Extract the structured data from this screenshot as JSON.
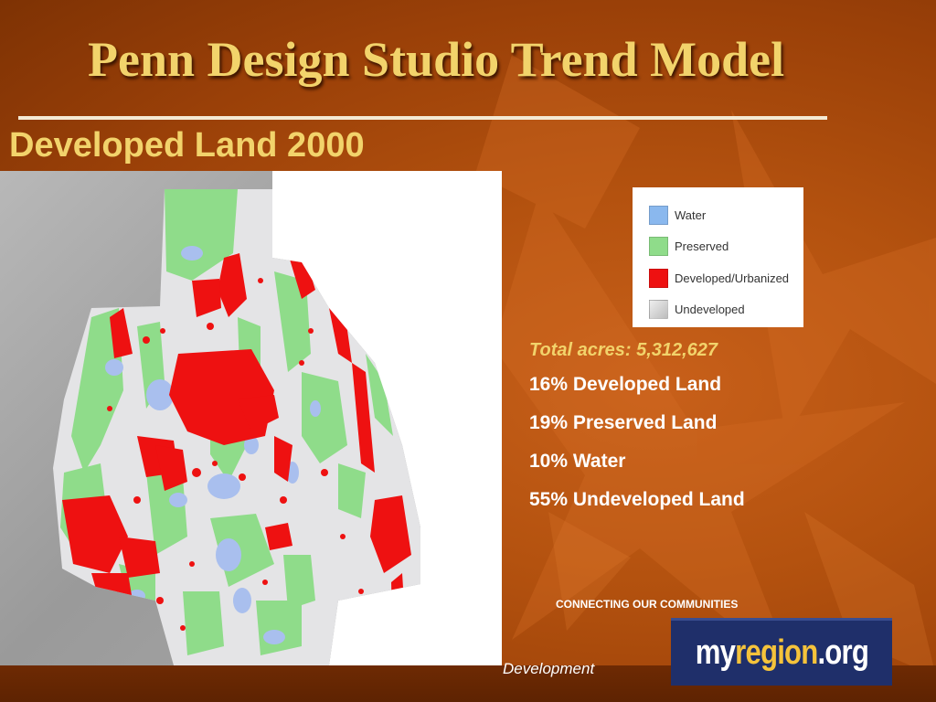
{
  "slide": {
    "title": "Penn Design Studio Trend Model",
    "subtitle": "Developed Land 2000"
  },
  "legend": {
    "items": [
      {
        "label": "Water",
        "color": "#8ab8ee"
      },
      {
        "label": "Preserved",
        "color": "#8fdc8a"
      },
      {
        "label": "Developed/Urbanized",
        "color": "#ee1111"
      },
      {
        "label": "Undeveloped",
        "color": "#d8d8d8"
      }
    ]
  },
  "stats": {
    "total": "Total acres: 5,312,627",
    "lines": [
      "16% Developed Land",
      "19% Preserved Land",
      "10% Water",
      "55% Undeveloped Land"
    ],
    "values": [
      {
        "category": "Developed Land",
        "percent": 16
      },
      {
        "category": "Preserved Land",
        "percent": 19
      },
      {
        "category": "Water",
        "percent": 10
      },
      {
        "category": "Undeveloped Land",
        "percent": 55
      }
    ]
  },
  "footer": {
    "tagline": "CONNECTING OUR COMMUNITIES",
    "logo": {
      "my": "my",
      "region": "region",
      "org": ".org"
    },
    "caption": "Development"
  },
  "colors": {
    "background": "#b4520f",
    "title": "#f2d36b",
    "logo_bg": "#1f2f6a",
    "logo_accent": "#f5c33b"
  }
}
